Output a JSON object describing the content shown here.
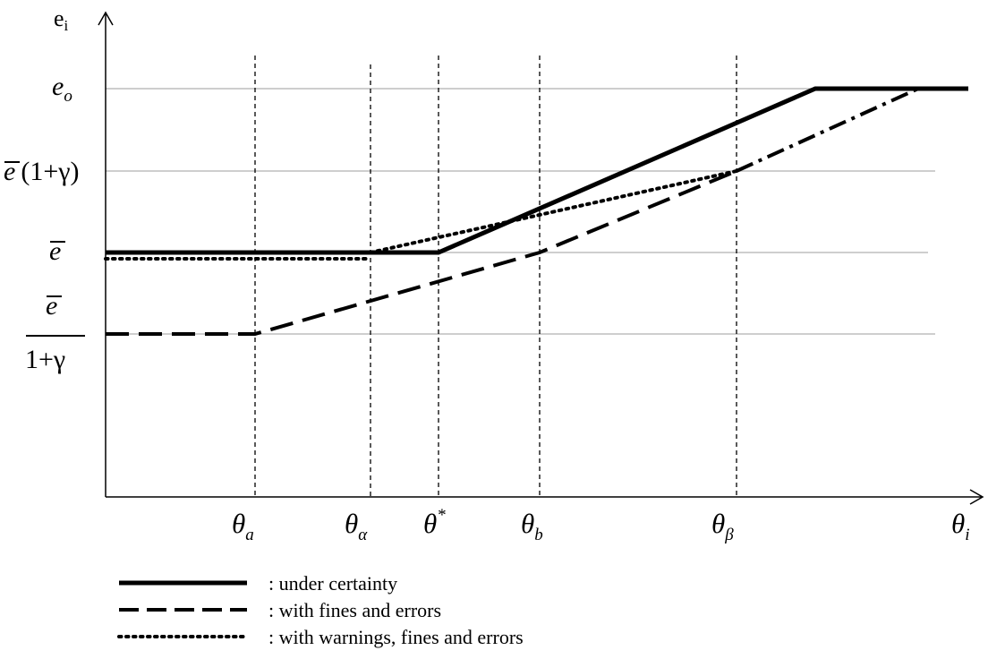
{
  "y_axis": {
    "title": "e",
    "title_sub": "i",
    "levels": {
      "e_o": {
        "base": "e",
        "sub": "o"
      },
      "ebar_times": {
        "bar": "e",
        "rest": "(1+γ)"
      },
      "ebar": {
        "bar": "e"
      },
      "ebar_over": {
        "numerator": "e",
        "denominator": "1+γ"
      }
    }
  },
  "x_axis": {
    "label": {
      "base": "θ",
      "sub": "i"
    },
    "ticks": [
      {
        "id": "theta-a",
        "base": "θ",
        "sub": "a",
        "sup": ""
      },
      {
        "id": "theta-alpha",
        "base": "θ",
        "sub": "α",
        "sup": ""
      },
      {
        "id": "theta-star",
        "base": "θ",
        "sub": "",
        "sup": "*"
      },
      {
        "id": "theta-b",
        "base": "θ",
        "sub": "b",
        "sup": ""
      },
      {
        "id": "theta-beta",
        "base": "θ",
        "sub": "β",
        "sup": ""
      }
    ]
  },
  "legend": [
    {
      "id": "certainty",
      "style": "solid",
      "label": ": under certainty"
    },
    {
      "id": "fines",
      "style": "dashed",
      "label": ": with fines and errors"
    },
    {
      "id": "warnings",
      "style": "dotted",
      "label": ": with warnings, fines and errors"
    }
  ]
}
